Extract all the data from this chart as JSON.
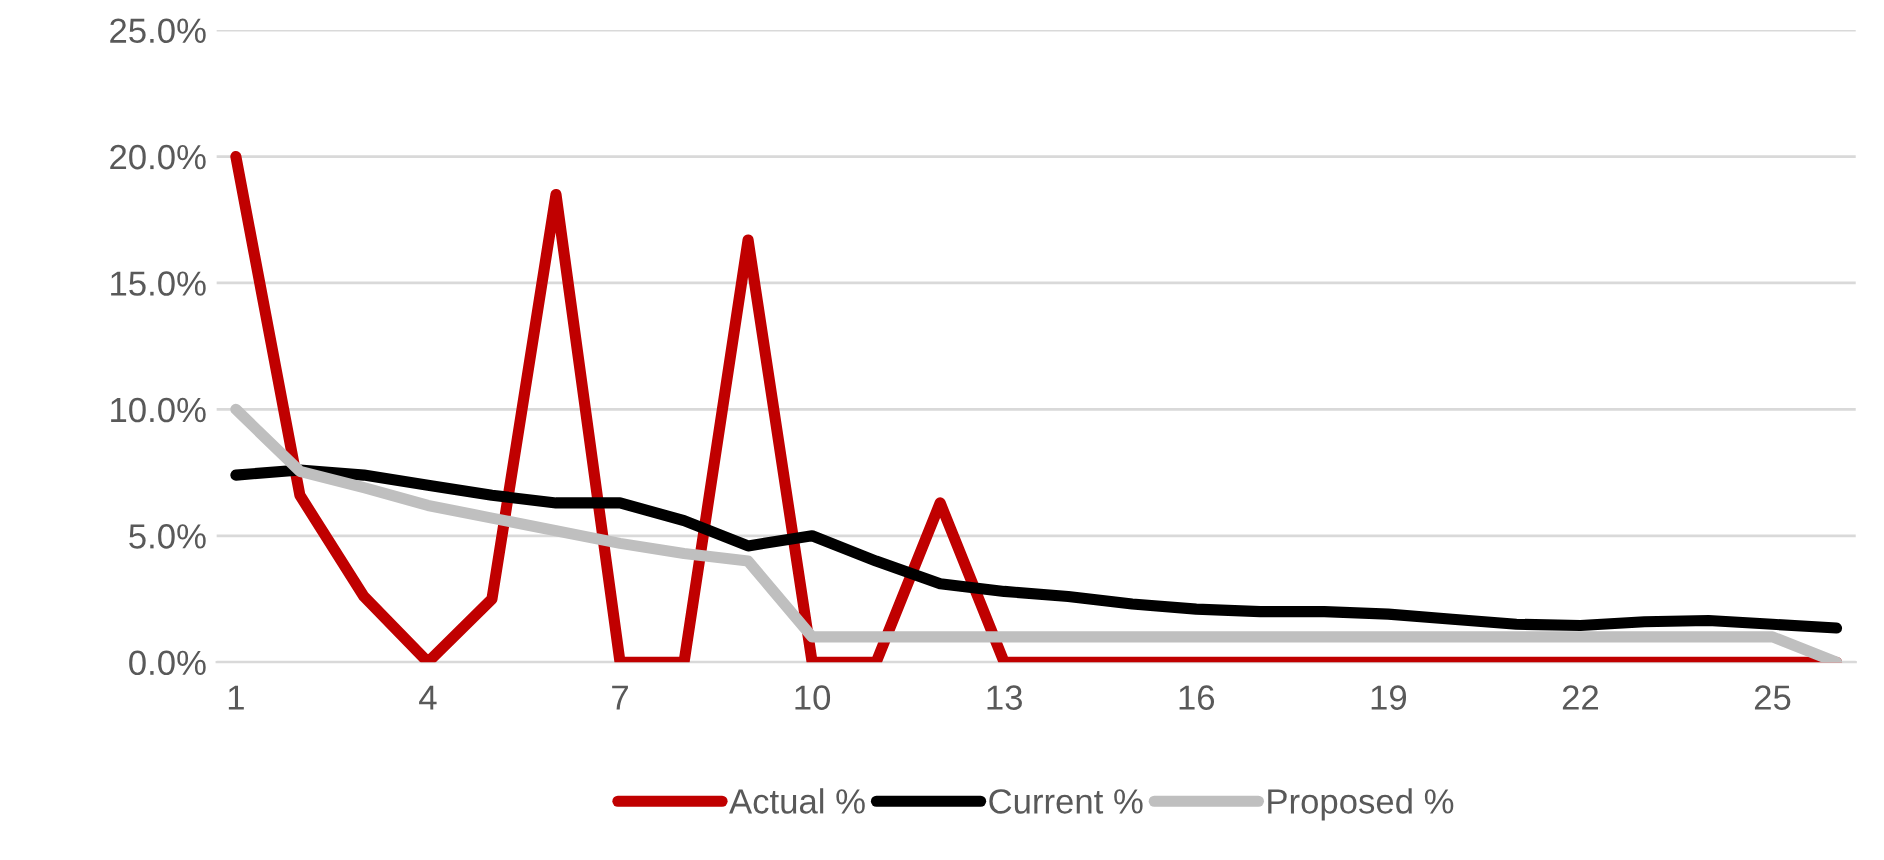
{
  "chart_data": {
    "type": "line",
    "categories": [
      "1",
      null,
      null,
      "4",
      null,
      null,
      "7",
      null,
      null,
      "10",
      null,
      null,
      "13",
      null,
      null,
      "16",
      null,
      null,
      "19",
      null,
      null,
      "22",
      null,
      null,
      "25",
      null
    ],
    "series": [
      {
        "name": "Actual %",
        "color": "#c00000",
        "values": [
          20.0,
          6.6,
          2.6,
          0,
          2.5,
          18.5,
          0,
          0,
          16.7,
          0,
          0,
          6.3,
          0,
          0,
          0,
          0,
          0,
          0,
          0,
          0,
          0,
          0,
          0,
          0,
          0,
          0
        ]
      },
      {
        "name": "Current %",
        "color": "#000000",
        "values": [
          7.4,
          7.6,
          7.4,
          7.0,
          6.6,
          6.3,
          6.3,
          5.6,
          4.6,
          5.0,
          4.0,
          3.1,
          2.8,
          2.6,
          2.3,
          2.1,
          2.0,
          2.0,
          1.9,
          1.7,
          1.5,
          1.45,
          1.6,
          1.65,
          1.5,
          1.35
        ]
      },
      {
        "name": "Proposed %",
        "color": "#bfbfbf",
        "values": [
          10.0,
          7.55,
          6.9,
          6.2,
          5.7,
          5.2,
          4.7,
          4.3,
          4.0,
          1.0,
          1.0,
          1.0,
          1.0,
          1.0,
          1.0,
          1.0,
          1.0,
          1.0,
          1.0,
          1.0,
          1.0,
          1.0,
          1.0,
          1.0,
          1.0,
          0
        ]
      }
    ],
    "ylim": [
      0,
      25
    ],
    "yticks": [
      {
        "value": 0,
        "label": "0.0%"
      },
      {
        "value": 5,
        "label": "5.0%"
      },
      {
        "value": 10,
        "label": "10.0%"
      },
      {
        "value": 15,
        "label": "15.0%"
      },
      {
        "value": 20,
        "label": "20.0%"
      },
      {
        "value": 25,
        "label": "25.0%"
      }
    ],
    "grid": "y",
    "legend": "bottom",
    "marker": "none",
    "line_style": "solid"
  }
}
